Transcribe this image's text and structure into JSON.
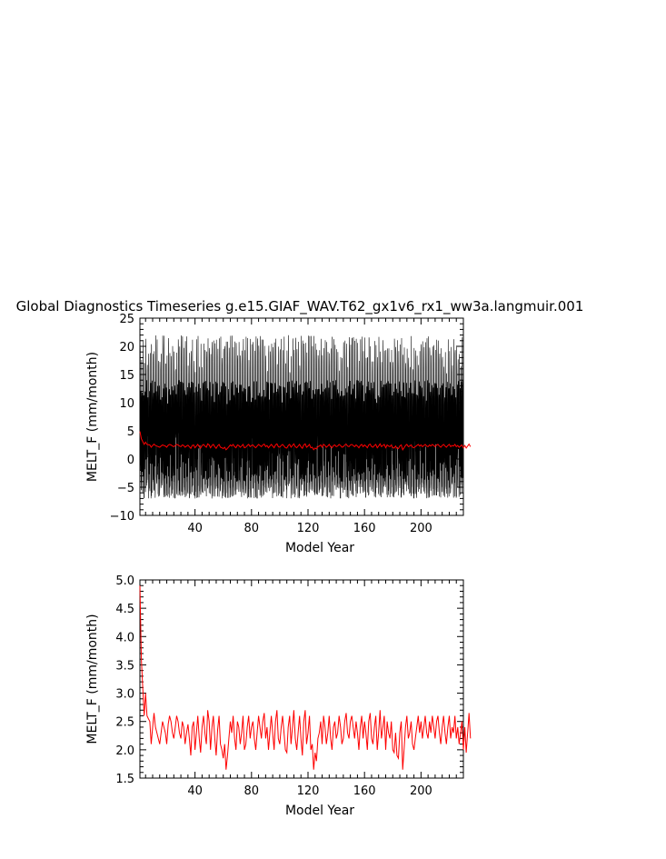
{
  "figure_title": "Global Diagnostics Timeseries g.e15.GIAF_WAV.T62_gx1v6_rx1_ww3a.langmuir.001",
  "chart_data": [
    {
      "type": "line",
      "title": "Global Diagnostics Timeseries g.e15.GIAF_WAV.T62_gx1v6_rx1_ww3a.langmuir.001",
      "xlabel": "Model Year",
      "ylabel": "MELT_F (mm/month)",
      "xlim": [
        1,
        230
      ],
      "ylim": [
        -10,
        25
      ],
      "xticks": [
        40,
        80,
        120,
        160,
        200
      ],
      "xtick_labels": [
        "40",
        "80",
        "120",
        "160",
        "200"
      ],
      "yticks": [
        -10,
        -5,
        0,
        5,
        10,
        15,
        20,
        25
      ],
      "ytick_labels": [
        "−10",
        "−5",
        "0",
        "5",
        "10",
        "15",
        "20",
        "25"
      ],
      "grid": false,
      "series": [
        {
          "color": "#000000",
          "description": "monthly values oscillating roughly between -7 and 22",
          "x_start": 1,
          "x_end": 230,
          "monthly_range": [
            -7,
            22
          ]
        },
        {
          "color": "#ff0000",
          "annual_mean_ref": "chart_data.1.series.0.values"
        }
      ]
    },
    {
      "type": "line",
      "xlabel": "Model Year",
      "ylabel": "MELT_F (mm/month)",
      "xlim": [
        1,
        230
      ],
      "ylim": [
        1.5,
        5.0
      ],
      "xticks": [
        40,
        80,
        120,
        160,
        200
      ],
      "xtick_labels": [
        "40",
        "80",
        "120",
        "160",
        "200"
      ],
      "yticks": [
        1.5,
        2.0,
        2.5,
        3.0,
        3.5,
        4.0,
        4.5,
        5.0
      ],
      "ytick_labels": [
        "1.5",
        "2.0",
        "2.5",
        "3.0",
        "3.5",
        "4.0",
        "4.5",
        "5.0"
      ],
      "grid": false,
      "series": [
        {
          "color": "#ff0000",
          "x_start": 1,
          "values": [
            4.9,
            3.6,
            3.1,
            2.6,
            3.0,
            2.6,
            2.55,
            2.5,
            2.1,
            2.4,
            2.65,
            2.4,
            2.3,
            2.2,
            2.1,
            2.3,
            2.5,
            2.4,
            2.3,
            2.1,
            2.45,
            2.6,
            2.5,
            2.3,
            2.2,
            2.4,
            2.6,
            2.5,
            2.3,
            2.2,
            2.5,
            2.4,
            2.1,
            2.3,
            2.45,
            2.2,
            1.9,
            2.4,
            2.5,
            2.0,
            2.3,
            2.6,
            2.2,
            1.95,
            2.4,
            2.6,
            2.3,
            2.1,
            2.7,
            2.5,
            2.0,
            2.4,
            2.6,
            2.2,
            1.9,
            2.35,
            2.6,
            2.1,
            2.0,
            1.85,
            2.1,
            1.65,
            1.9,
            2.2,
            2.5,
            2.3,
            2.6,
            2.2,
            2.0,
            2.5,
            2.4,
            2.1,
            2.3,
            2.6,
            2.0,
            2.1,
            2.4,
            2.6,
            2.2,
            2.4,
            2.5,
            2.2,
            2.0,
            2.3,
            2.6,
            2.4,
            2.2,
            2.5,
            2.65,
            2.2,
            2.4,
            2.0,
            2.3,
            2.6,
            2.3,
            2.0,
            2.5,
            2.7,
            2.2,
            2.1,
            2.4,
            2.6,
            2.3,
            2.0,
            1.95,
            2.4,
            2.6,
            2.1,
            2.4,
            2.7,
            2.2,
            2.0,
            2.3,
            2.6,
            2.2,
            1.9,
            2.5,
            2.7,
            2.1,
            2.3,
            2.6,
            2.0,
            2.1,
            1.65,
            1.95,
            1.8,
            2.2,
            2.3,
            2.5,
            2.1,
            2.6,
            2.4,
            2.1,
            2.3,
            2.6,
            2.2,
            2.0,
            2.4,
            2.5,
            2.2,
            2.3,
            2.6,
            2.4,
            2.1,
            2.2,
            2.5,
            2.65,
            2.3,
            2.2,
            2.5,
            2.6,
            2.4,
            2.2,
            2.5,
            2.3,
            2.0,
            2.4,
            2.6,
            2.2,
            2.5,
            2.3,
            2.0,
            2.5,
            2.65,
            2.2,
            2.1,
            2.4,
            2.6,
            2.0,
            2.3,
            2.7,
            2.2,
            2.4,
            2.6,
            2.0,
            2.5,
            2.3,
            2.2,
            2.5,
            2.0,
            1.95,
            2.3,
            1.9,
            1.85,
            2.3,
            2.5,
            1.65,
            2.0,
            2.4,
            2.6,
            2.2,
            2.3,
            2.5,
            2.1,
            2.0,
            2.2,
            2.4,
            2.6,
            2.3,
            2.5,
            2.2,
            2.4,
            2.6,
            2.3,
            2.2,
            2.5,
            2.3,
            2.6,
            2.4,
            2.2,
            2.5,
            2.6,
            2.3,
            2.1,
            2.4,
            2.6,
            2.3,
            2.1,
            2.4,
            2.6,
            2.2,
            2.4,
            2.3,
            2.6,
            2.2,
            2.4,
            2.1,
            2.3,
            2.5,
            2.0,
            2.4,
            1.95,
            2.3,
            2.65,
            2.2
          ]
        }
      ]
    }
  ]
}
